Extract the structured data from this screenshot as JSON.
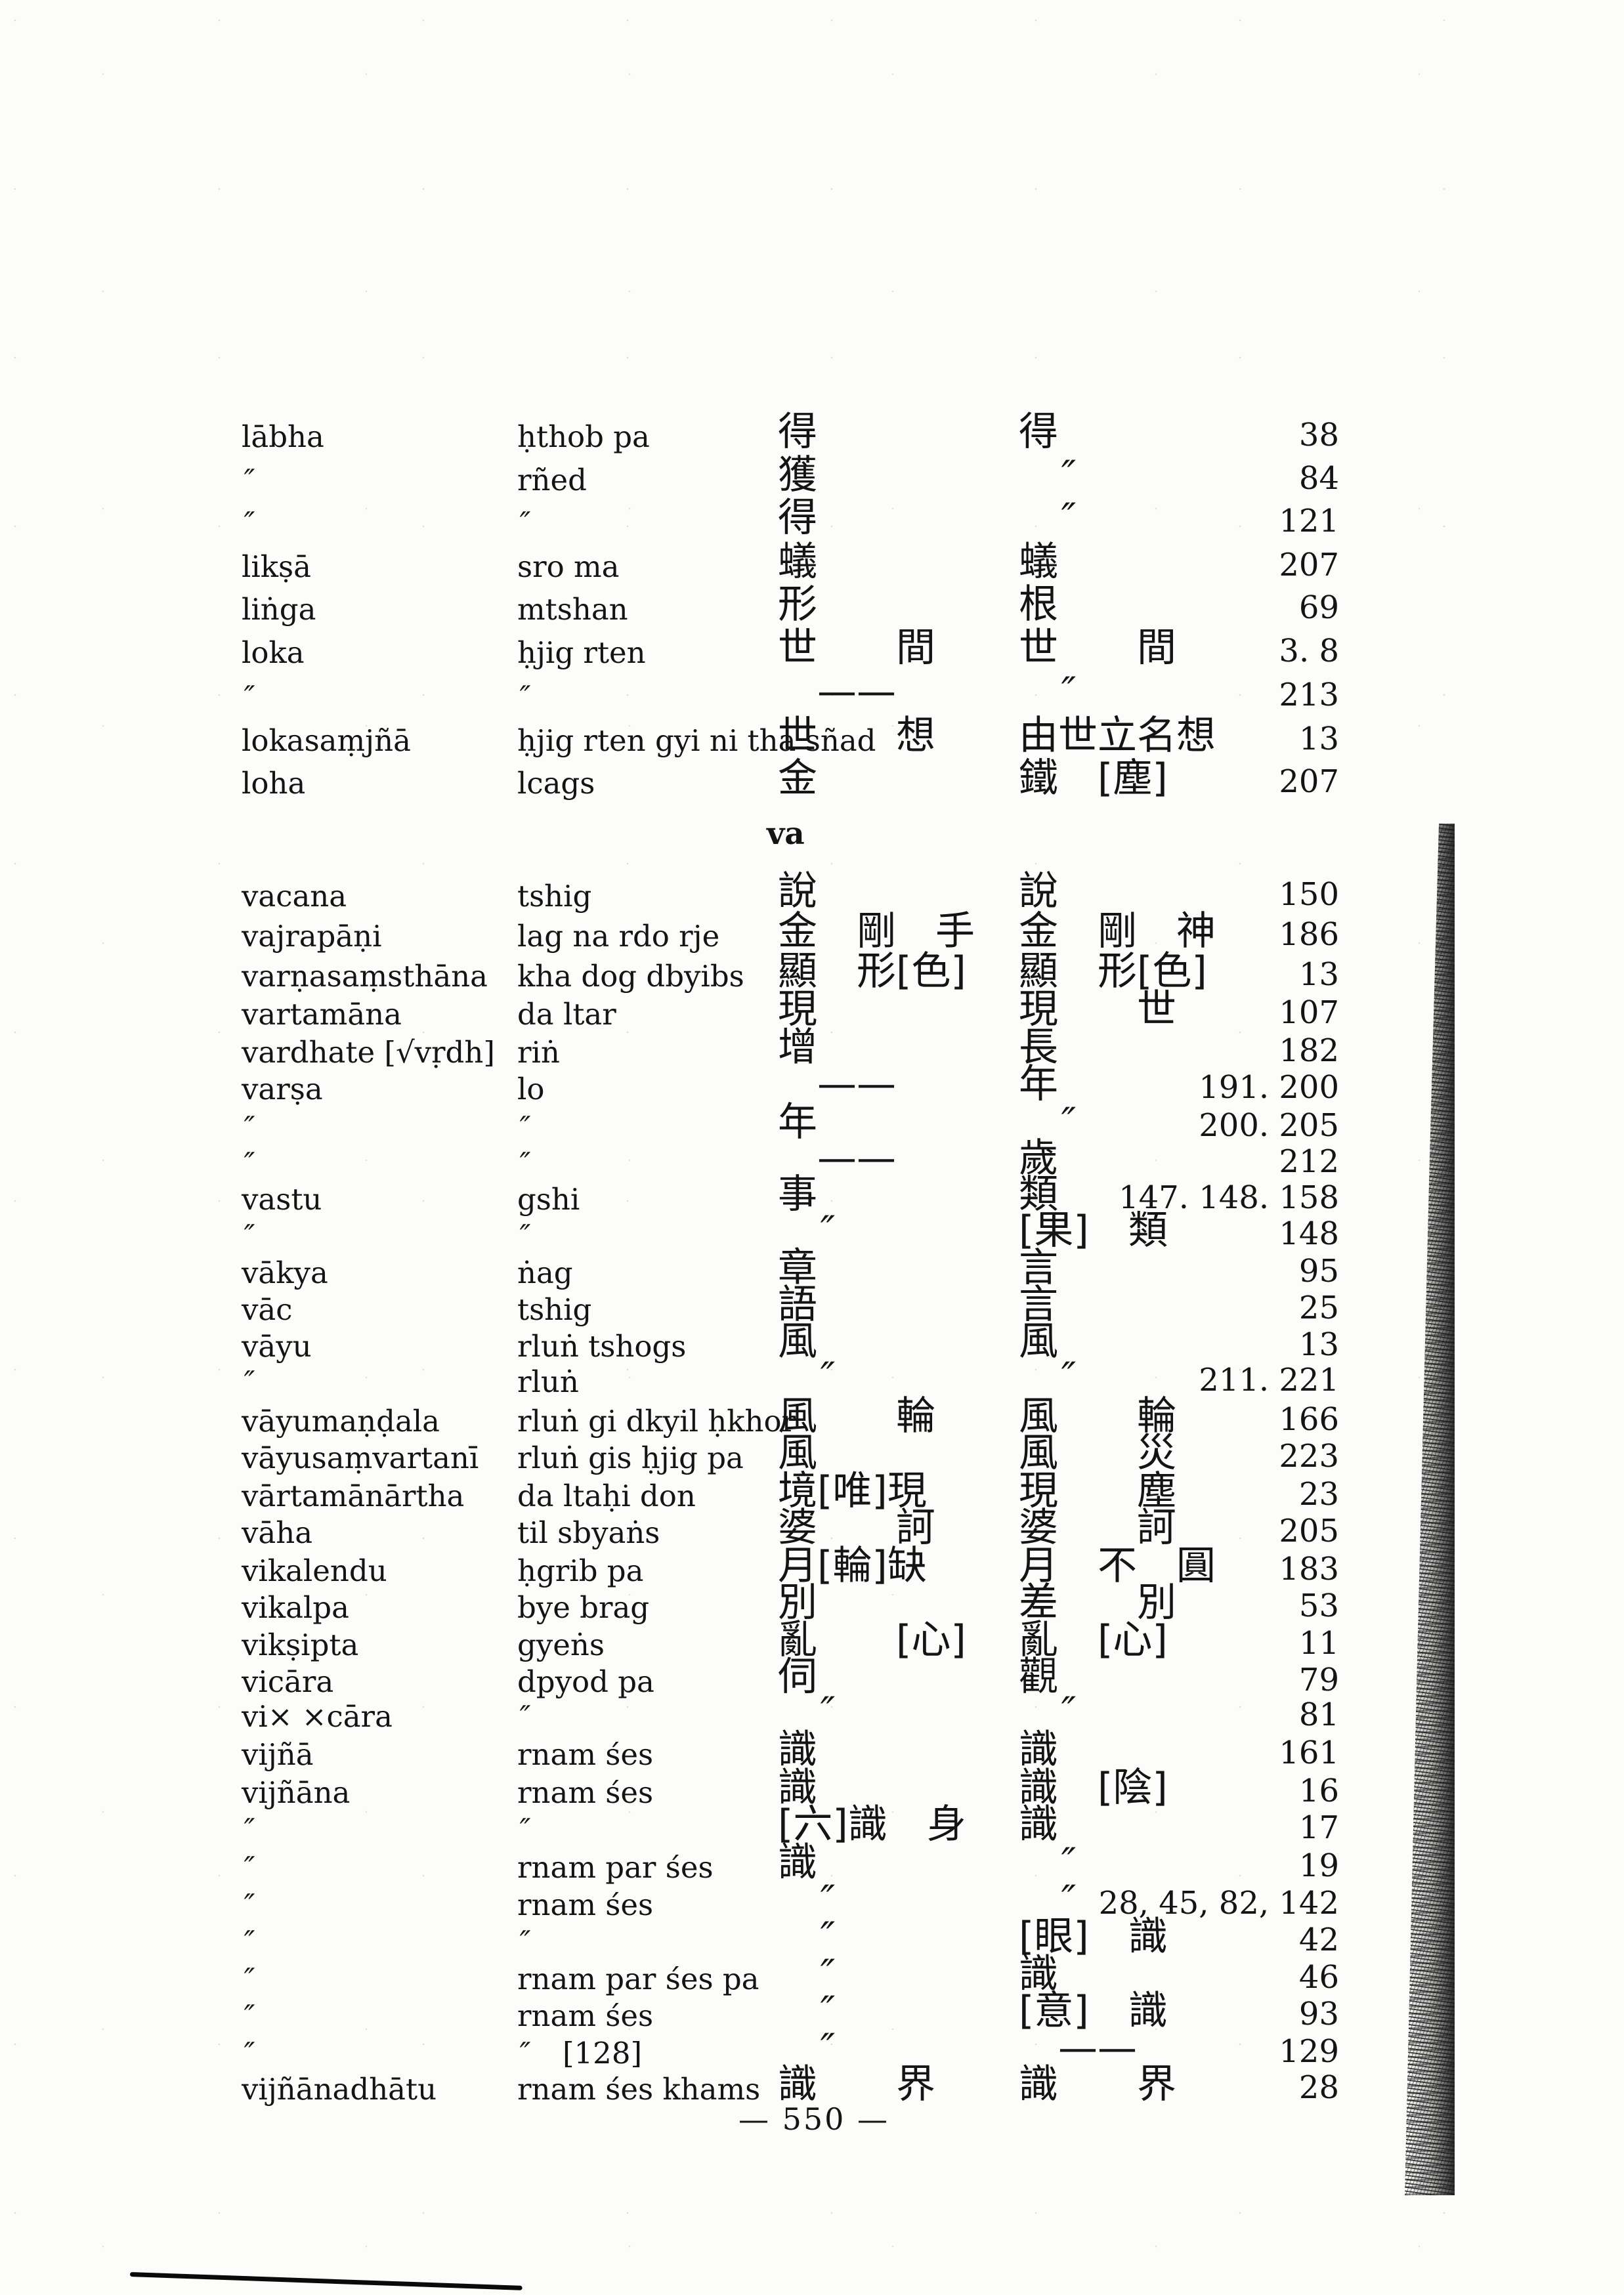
{
  "page": {
    "footer": "— 550 —"
  },
  "sections": [
    {
      "heading": "",
      "entries": [
        {
          "skt": "lābha",
          "tib": "ḥthob pa",
          "ch1": "得",
          "ch2": "得",
          "pg": "38"
        },
        {
          "skt": "〃",
          "tib": "rñed",
          "ch1": "獲",
          "ch2": "　〃",
          "pg": "84"
        },
        {
          "skt": "〃",
          "tib": "〃",
          "ch1": "得",
          "ch2": "　〃",
          "pg": "121"
        },
        {
          "skt": "likṣā",
          "tib": "sro ma",
          "ch1": "蟻",
          "ch2": "蟻",
          "pg": "207"
        },
        {
          "skt": "liṅga",
          "tib": "mtshan",
          "ch1": "形",
          "ch2": "根",
          "pg": "69"
        },
        {
          "skt": "loka",
          "tib": "ḥjig rten",
          "ch1": "世　　間",
          "ch2": "世　　間",
          "pg": "3. 8"
        },
        {
          "skt": "〃",
          "tib": "〃",
          "ch1": "　——",
          "ch2": "　〃",
          "pg": "213"
        },
        {
          "skt": "lokasaṃjñā",
          "tib": "ḥjig rten gyi ni tha sñad",
          "ch1": "世　　想",
          "ch2": "由世立名想",
          "pg": "13"
        },
        {
          "skt": "loha",
          "tib": "lcags",
          "ch1": "金",
          "ch2": "鐵　〔塵〕",
          "pg": "207"
        }
      ]
    },
    {
      "heading": "va",
      "entries": [
        {
          "skt": "vacana",
          "tib": "tshig",
          "ch1": "說",
          "ch2": "說",
          "pg": "150"
        },
        {
          "skt": "vajrapāṇi",
          "tib": "lag na rdo rje",
          "ch1": "金　剛　手",
          "ch2": "金　剛　神",
          "pg": "186"
        },
        {
          "skt": "varṇasaṃsthāna",
          "tib": "kha dog dbyibs",
          "ch1": "顯　形〔色〕",
          "ch2": "顯　形〔色〕",
          "pg": "13"
        },
        {
          "skt": "vartamāna",
          "tib": "da ltar",
          "ch1": "現",
          "ch2": "現　　世",
          "pg": "107"
        },
        {
          "skt": "vardhate 〔√vṛdh〕",
          "tib": "riṅ",
          "ch1": "增",
          "ch2": "長",
          "pg": "182"
        },
        {
          "skt": "varṣa",
          "tib": "lo",
          "ch1": "　——",
          "ch2": "年",
          "pg": "191. 200"
        },
        {
          "skt": "〃",
          "tib": "〃",
          "ch1": "年",
          "ch2": "　〃",
          "pg": "200. 205"
        },
        {
          "skt": "〃",
          "tib": "〃",
          "ch1": "　——",
          "ch2": "歲",
          "pg": "212"
        },
        {
          "skt": "vastu",
          "tib": "gshi",
          "ch1": "事",
          "ch2": "類",
          "pg": "147. 148. 158"
        },
        {
          "skt": "〃",
          "tib": "〃",
          "ch1": "　〃",
          "ch2": "〔果〕　類",
          "pg": "148"
        },
        {
          "skt": "vākya",
          "tib": "ṅag",
          "ch1": "章",
          "ch2": "言",
          "pg": "95"
        },
        {
          "skt": "vāc",
          "tib": "tshig",
          "ch1": "語",
          "ch2": "言",
          "pg": "25"
        },
        {
          "skt": "vāyu",
          "tib": "rluṅ tshogs",
          "ch1": "風",
          "ch2": "風",
          "pg": "13"
        },
        {
          "skt": "〃",
          "tib": "rluṅ",
          "ch1": "　〃",
          "ch2": "　〃",
          "pg": "211. 221"
        },
        {
          "skt": "vāyumaṇḍala",
          "tib": "rluṅ gi dkyil ḥkhor",
          "ch1": "風　　輪",
          "ch2": "風　　輪",
          "pg": "166"
        },
        {
          "skt": "vāyusaṃvartanī",
          "tib": "rluṅ gis ḥjig pa",
          "ch1": "風",
          "ch2": "風　　災",
          "pg": "223"
        },
        {
          "skt": "vārtamānārtha",
          "tib": "da ltaḥi don",
          "ch1": "境〔唯〕現",
          "ch2": "現　　塵",
          "pg": "23"
        },
        {
          "skt": "vāha",
          "tib": "til sbyaṅs",
          "ch1": "婆　　訶",
          "ch2": "婆　　訶",
          "pg": "205"
        },
        {
          "skt": "vikalendu",
          "tib": "ḥgrib pa",
          "ch1": "月〔輪〕缺",
          "ch2": "月　不　圓",
          "pg": "183"
        },
        {
          "skt": "vikalpa",
          "tib": "bye brag",
          "ch1": "別",
          "ch2": "差　　別",
          "pg": "53"
        },
        {
          "skt": "vikṣipta",
          "tib": "gyeṅs",
          "ch1": "亂　　〔心〕",
          "ch2": "亂　〔心〕",
          "pg": "11"
        },
        {
          "skt": "vicāra",
          "tib": "dpyod pa",
          "ch1": "伺",
          "ch2": "觀",
          "pg": "79"
        },
        {
          "skt": "vi× ×cāra",
          "tib": "〃",
          "ch1": "　〃",
          "ch2": "　〃",
          "pg": "81"
        },
        {
          "skt": "vijñā",
          "tib": "rnam śes",
          "ch1": "識",
          "ch2": "識",
          "pg": "161"
        },
        {
          "skt": "vijñāna",
          "tib": "rnam śes",
          "ch1": "識",
          "ch2": "識　〔陰〕",
          "pg": "16"
        },
        {
          "skt": "〃",
          "tib": "〃",
          "ch1": "〔六〕識　身",
          "ch2": "識",
          "pg": "17"
        },
        {
          "skt": "〃",
          "tib": "rnam par śes",
          "ch1": "識",
          "ch2": "　〃",
          "pg": "19"
        },
        {
          "skt": "〃",
          "tib": "rnam śes",
          "ch1": "　〃",
          "ch2": "　〃",
          "pg": "28, 45, 82, 142"
        },
        {
          "skt": "〃",
          "tib": "〃",
          "ch1": "　〃",
          "ch2": "〔眼〕　識",
          "pg": "42"
        },
        {
          "skt": "〃",
          "tib": "rnam par śes pa",
          "ch1": "　〃",
          "ch2": "識",
          "pg": "46"
        },
        {
          "skt": "〃",
          "tib": "rnam śes",
          "ch1": "　〃",
          "ch2": "〔意〕　識",
          "pg": "93"
        },
        {
          "skt": "〃",
          "tib": "〃　〔128〕",
          "ch1": "　〃",
          "ch2": "　——",
          "pg": "129"
        },
        {
          "skt": "vijñānadhātu",
          "tib": "rnam śes khams",
          "ch1": "識　　界",
          "ch2": "識　　界",
          "pg": "28"
        }
      ]
    }
  ]
}
